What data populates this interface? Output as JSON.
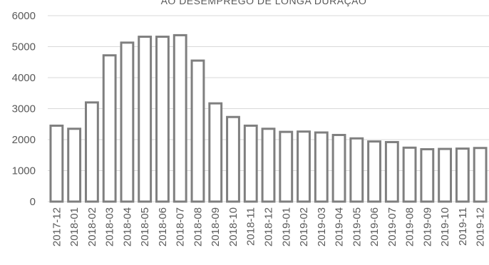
{
  "chart_data": {
    "type": "bar",
    "title": "AO DESEMPREGO DE LONGA DURAÇÃO",
    "xlabel": "",
    "ylabel": "",
    "ylim": [
      0,
      6000
    ],
    "yticks": [
      0,
      1000,
      2000,
      3000,
      4000,
      5000,
      6000
    ],
    "grid": true,
    "categories": [
      "2017-12",
      "2018-01",
      "2018-02",
      "2018-03",
      "2018-04",
      "2018-05",
      "2018-06",
      "2018-07",
      "2018-08",
      "2018-09",
      "2018-10",
      "2018-11",
      "2018-12",
      "2019-01",
      "2019-02",
      "2019-03",
      "2019-04",
      "2019-05",
      "2019-06",
      "2019-07",
      "2019-08",
      "2019-09",
      "2019-10",
      "2019-11",
      "2019-12"
    ],
    "values": [
      2450,
      2350,
      3200,
      4720,
      5130,
      5320,
      5320,
      5370,
      4550,
      3170,
      2730,
      2450,
      2350,
      2250,
      2260,
      2230,
      2150,
      2040,
      1940,
      1920,
      1740,
      1690,
      1700,
      1710,
      1730
    ],
    "colors": {
      "bar_fill": "#ffffff",
      "bar_stroke": "#7f7f7f",
      "grid": "#d9d9d9",
      "text": "#595959"
    }
  }
}
